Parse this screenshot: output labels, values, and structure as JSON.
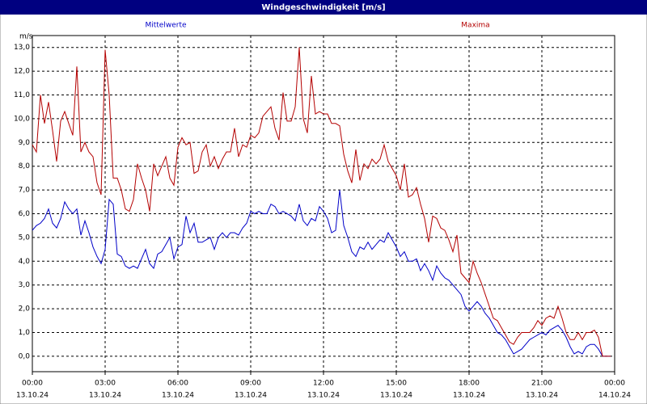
{
  "chart_data": {
    "type": "line",
    "title": "Windgeschwindigkeit [m/s]",
    "y_unit": "m/s",
    "x": [
      0,
      10,
      20,
      30,
      40,
      50,
      60,
      70,
      80,
      90,
      100,
      110,
      120,
      130,
      140,
      150,
      160,
      170,
      180,
      190,
      200,
      210,
      220,
      230,
      240,
      250,
      260,
      270,
      280,
      290,
      300,
      310,
      320,
      330,
      340,
      350,
      360,
      370,
      380,
      390,
      400,
      410,
      420,
      430,
      440,
      450,
      460,
      470,
      480,
      490,
      500,
      510,
      520,
      530,
      540,
      550,
      560,
      570,
      580,
      590,
      600,
      610,
      620,
      630,
      640,
      650,
      660,
      670,
      680,
      690,
      700,
      710,
      720,
      730,
      740,
      750,
      760,
      770,
      780,
      790,
      800,
      810,
      820,
      830,
      840,
      850,
      860,
      870,
      880,
      890,
      900,
      910,
      920,
      930,
      940,
      950,
      960,
      970,
      980,
      990,
      1000,
      1010,
      1020,
      1030,
      1040,
      1050,
      1060,
      1070,
      1080,
      1090,
      1100,
      1110,
      1120,
      1130,
      1140,
      1150,
      1160,
      1170,
      1180,
      1190,
      1200,
      1210,
      1220,
      1230,
      1240,
      1250,
      1260,
      1270,
      1280,
      1290,
      1300,
      1310,
      1320,
      1330,
      1340,
      1350,
      1360,
      1370,
      1380,
      1390,
      1400,
      1410,
      1420,
      1430
    ],
    "series": [
      {
        "name": "Mittelwerte",
        "color": "#0000c8",
        "values": [
          5.3,
          5.5,
          5.6,
          5.8,
          6.2,
          5.6,
          5.4,
          5.8,
          6.5,
          6.2,
          6.0,
          6.2,
          5.1,
          5.7,
          5.2,
          4.6,
          4.2,
          3.9,
          4.5,
          6.6,
          6.4,
          4.3,
          4.2,
          3.8,
          3.7,
          3.8,
          3.7,
          4.1,
          4.5,
          3.9,
          3.7,
          4.3,
          4.4,
          4.7,
          5.0,
          4.1,
          4.6,
          4.7,
          5.9,
          5.2,
          5.6,
          4.8,
          4.8,
          4.9,
          5.0,
          4.5,
          5.0,
          5.2,
          5.0,
          5.2,
          5.2,
          5.1,
          5.4,
          5.6,
          6.1,
          6.0,
          6.1,
          6.0,
          6.0,
          6.4,
          6.3,
          6.0,
          6.1,
          6.0,
          5.9,
          5.7,
          6.4,
          5.7,
          5.5,
          5.8,
          5.7,
          6.3,
          6.1,
          5.8,
          5.2,
          5.3,
          7.0,
          5.5,
          5.0,
          4.4,
          4.2,
          4.6,
          4.5,
          4.8,
          4.5,
          4.7,
          4.9,
          4.8,
          5.2,
          4.9,
          4.6,
          4.2,
          4.4,
          4.0,
          4.0,
          4.1,
          3.6,
          3.9,
          3.6,
          3.2,
          3.8,
          3.5,
          3.3,
          3.2,
          3.0,
          2.8,
          2.6,
          2.1,
          1.9,
          2.1,
          2.3,
          2.1,
          1.8,
          1.6,
          1.3,
          1.0,
          0.9,
          0.7,
          0.4,
          0.1,
          0.2,
          0.3,
          0.5,
          0.7,
          0.8,
          0.9,
          1.0,
          0.9,
          1.1,
          1.2,
          1.3,
          1.1,
          0.8,
          0.4,
          0.1,
          0.2,
          0.1,
          0.4,
          0.5,
          0.5,
          0.3,
          0.0,
          0.0,
          0.0
        ]
      },
      {
        "name": "Maxima",
        "color": "#b40000",
        "values": [
          8.9,
          8.6,
          11.0,
          9.8,
          10.7,
          9.5,
          8.2,
          9.9,
          10.3,
          9.8,
          9.3,
          12.2,
          8.6,
          9.0,
          8.6,
          8.4,
          7.3,
          6.8,
          12.9,
          11.0,
          7.5,
          7.5,
          7.0,
          6.2,
          6.1,
          6.6,
          8.1,
          7.5,
          7.0,
          6.1,
          8.1,
          7.6,
          8.0,
          8.4,
          7.5,
          7.2,
          8.8,
          9.2,
          8.9,
          9.0,
          7.7,
          7.8,
          8.6,
          8.9,
          8.0,
          8.4,
          7.9,
          8.3,
          8.6,
          8.6,
          9.6,
          8.4,
          8.9,
          8.8,
          9.3,
          9.2,
          9.4,
          10.1,
          10.3,
          10.5,
          9.6,
          9.1,
          11.1,
          9.9,
          9.9,
          10.5,
          13.0,
          10.0,
          9.4,
          11.8,
          10.2,
          10.3,
          10.2,
          10.2,
          9.8,
          9.8,
          9.7,
          8.5,
          7.8,
          7.3,
          8.7,
          7.4,
          8.1,
          7.9,
          8.3,
          8.1,
          8.3,
          8.9,
          8.2,
          7.9,
          7.6,
          7.0,
          8.1,
          6.7,
          6.8,
          7.1,
          6.4,
          5.8,
          4.8,
          5.9,
          5.8,
          5.4,
          5.3,
          4.9,
          4.4,
          5.1,
          3.5,
          3.3,
          3.1,
          4.0,
          3.5,
          3.1,
          2.6,
          2.1,
          1.6,
          1.5,
          1.2,
          0.9,
          0.6,
          0.5,
          0.8,
          1.0,
          1.0,
          1.0,
          1.2,
          1.5,
          1.3,
          1.6,
          1.7,
          1.6,
          2.1,
          1.6,
          1.0,
          0.7,
          0.7,
          1.0,
          0.7,
          1.0,
          1.0,
          1.1,
          0.8,
          0.0,
          0.0,
          0.0
        ]
      }
    ],
    "xlim": [
      0,
      1440
    ],
    "xticks": [
      {
        "value": 0,
        "label": "00:00",
        "date": "13.10.24"
      },
      {
        "value": 180,
        "label": "03:00",
        "date": "13.10.24"
      },
      {
        "value": 360,
        "label": "06:00",
        "date": "13.10.24"
      },
      {
        "value": 540,
        "label": "09:00",
        "date": "13.10.24"
      },
      {
        "value": 720,
        "label": "12:00",
        "date": "13.10.24"
      },
      {
        "value": 900,
        "label": "15:00",
        "date": "13.10.24"
      },
      {
        "value": 1080,
        "label": "18:00",
        "date": "13.10.24"
      },
      {
        "value": 1260,
        "label": "21:00",
        "date": "13.10.24"
      },
      {
        "value": 1440,
        "label": "00:00",
        "date": "14.10.24"
      }
    ],
    "ylim": [
      -0.65,
      13.5
    ],
    "yticks": [
      {
        "value": 0,
        "label": "0,0"
      },
      {
        "value": 1,
        "label": "1,0"
      },
      {
        "value": 2,
        "label": "2,0"
      },
      {
        "value": 3,
        "label": "3,0"
      },
      {
        "value": 4,
        "label": "4,0"
      },
      {
        "value": 5,
        "label": "5,0"
      },
      {
        "value": 6,
        "label": "6,0"
      },
      {
        "value": 7,
        "label": "7,0"
      },
      {
        "value": 8,
        "label": "8,0"
      },
      {
        "value": 9,
        "label": "9,0"
      },
      {
        "value": 10,
        "label": "10,0"
      },
      {
        "value": 11,
        "label": "11,0"
      },
      {
        "value": 12,
        "label": "12,0"
      },
      {
        "value": 13,
        "label": "13,0"
      }
    ],
    "grid": true
  }
}
